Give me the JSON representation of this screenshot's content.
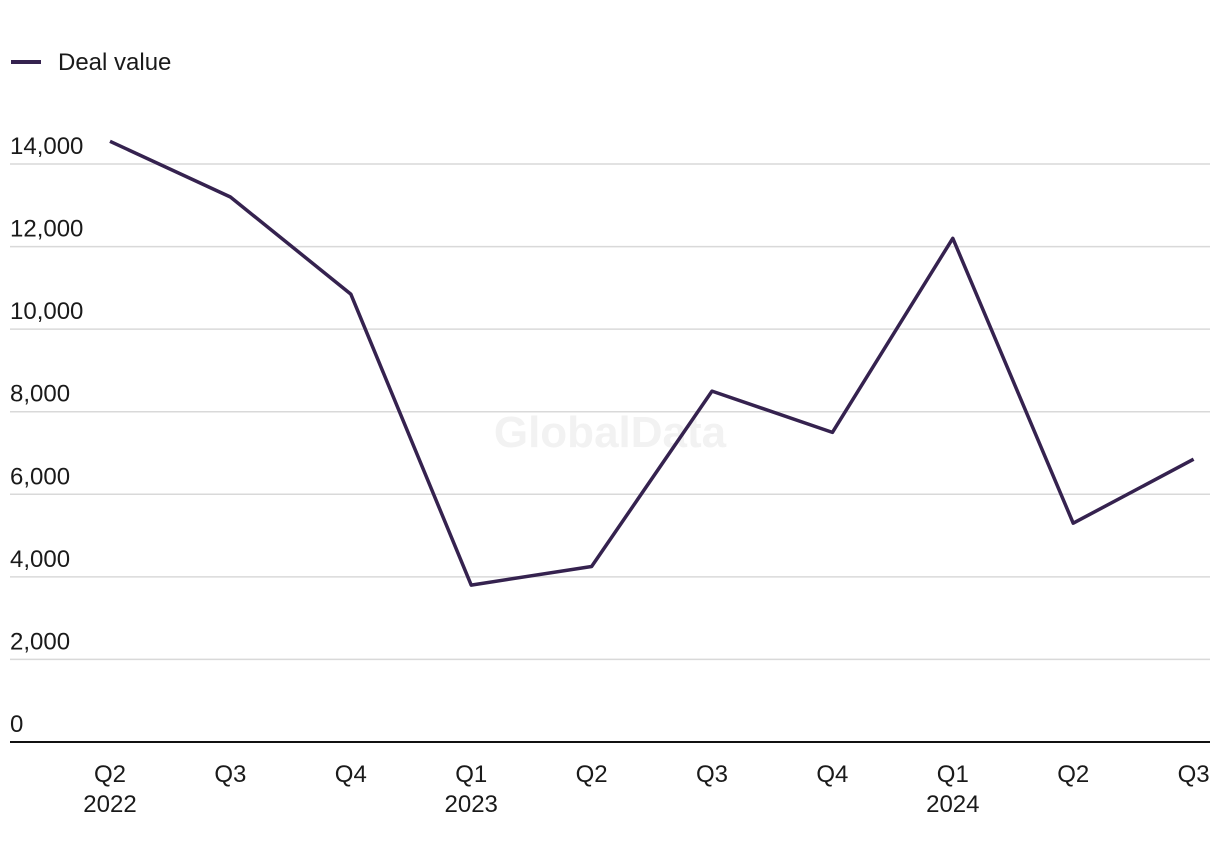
{
  "watermark": "GlobalData",
  "colors": {
    "series": "#35224f",
    "grid": "#d9d9d9",
    "axis": "#111111"
  },
  "chart_data": {
    "type": "line",
    "title": "",
    "xlabel": "",
    "ylabel": "",
    "legend_position": "top-left",
    "grid": true,
    "ylim": [
      0,
      14000
    ],
    "y_ticks": [
      "0",
      "2,000",
      "4,000",
      "6,000",
      "8,000",
      "10,000",
      "12,000",
      "14,000"
    ],
    "y_tick_values": [
      0,
      2000,
      4000,
      6000,
      8000,
      10000,
      12000,
      14000
    ],
    "categories": [
      {
        "quarter": "Q2",
        "year": "2022"
      },
      {
        "quarter": "Q3",
        "year": ""
      },
      {
        "quarter": "Q4",
        "year": ""
      },
      {
        "quarter": "Q1",
        "year": "2023"
      },
      {
        "quarter": "Q2",
        "year": ""
      },
      {
        "quarter": "Q3",
        "year": ""
      },
      {
        "quarter": "Q4",
        "year": ""
      },
      {
        "quarter": "Q1",
        "year": "2024"
      },
      {
        "quarter": "Q2",
        "year": ""
      },
      {
        "quarter": "Q3",
        "year": ""
      }
    ],
    "series": [
      {
        "name": "Deal value",
        "values": [
          14550,
          13200,
          10850,
          3800,
          4250,
          8500,
          7500,
          12200,
          5300,
          6850
        ]
      }
    ]
  }
}
